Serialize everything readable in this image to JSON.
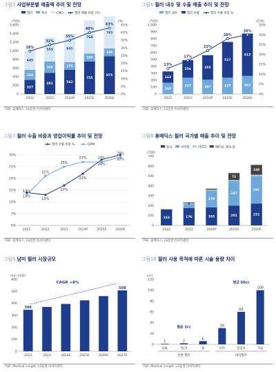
{
  "charts": [
    {
      "fig": "그림5",
      "title": "사업부문별 매출액 추이 및 전망",
      "source": "자료: 휴메딕스, LS증권 리서치센터",
      "chart_data": {
        "type": "bar+line",
        "categories": [
          "2022",
          "2023",
          "2024P",
          "2025E",
          "2026E"
        ],
        "left_unit": "(억원)",
        "right_unit": "(%)",
        "ylim": [
          0,
          1600
        ],
        "yticks": [
          "0",
          "200",
          "400",
          "600",
          "800",
          "1,000",
          "1,200",
          "1,400",
          "1,600"
        ],
        "y2lim": [
          0,
          45
        ],
        "y2ticks": [
          "0%",
          "5%",
          "10%",
          "15%",
          "20%",
          "25%",
          "30%",
          "35%",
          "40%",
          "45%"
        ],
        "legend": [
          "필러",
          "톡신",
          "CMO",
          "필러 매출 비중 (우)"
        ],
        "bars": [
          {
            "name": "필러",
            "color": "#1f3d8f",
            "values": [
              327,
              491,
              562,
              755,
              875
            ]
          },
          {
            "name": "톡신",
            "color": "#6fa8dc",
            "values": [
              234,
              264,
              175,
              184,
              180
            ]
          },
          {
            "name": "CMO",
            "color": "#d9e8f5",
            "values": [
              445,
              555,
              641,
              764,
              743
            ]
          }
        ],
        "line": {
          "name": "필러 매출 비중 (우)",
          "values": [
            28,
            32,
            35,
            40,
            43
          ],
          "labels": [
            "28%",
            "32%",
            "35%",
            "40%",
            "43%"
          ]
        }
      }
    },
    {
      "fig": "그림6",
      "title": "필러 내수 및 수출 매출 추이 및 전망",
      "source": "자료: 휴메딕스, LS증권 리서치센터",
      "chart_data": {
        "type": "bar+line",
        "categories": [
          "2022",
          "2023",
          "2024P",
          "2025E",
          "2026E"
        ],
        "left_unit": "(억원)",
        "right_unit": "(단위)",
        "ylim": [
          0,
          1000
        ],
        "yticks": [
          "0",
          "100",
          "200",
          "300",
          "400",
          "500",
          "600",
          "700",
          "800",
          "900",
          "1,000"
        ],
        "y2lim": [
          0,
          35
        ],
        "y2ticks": [
          "0%",
          "5%",
          "10%",
          "15%",
          "20%",
          "25%",
          "30%",
          "35%"
        ],
        "legend": [
          "필러 내수",
          "필러 수출",
          "필러 수출 비중 %"
        ],
        "bars": [
          {
            "name": "필러 내수",
            "color": "#6fa8dc",
            "values": [
              164,
              237,
              207,
              237,
              262
            ]
          },
          {
            "name": "필러 수출",
            "color": "#1f3d8f",
            "values": [
              163,
              254,
              355,
              517,
              613
            ]
          }
        ],
        "line": {
          "name": "필러 수출 비중 %",
          "values": [
            13,
            17,
            22,
            28,
            30
          ],
          "labels": [
            "13%",
            "17%",
            "22%",
            "28%",
            "30%"
          ]
        }
      }
    },
    {
      "fig": "그림7",
      "title": "필러 수출 비중과 영업이익률 추이 및 전망",
      "source": "자료: 휴메딕스, LS증권 리서치센터",
      "chart_data": {
        "type": "line",
        "categories": [
          "2021",
          "2022",
          "2023",
          "2024P",
          "2025E",
          "2026E"
        ],
        "ylim": [
          0,
          30
        ],
        "yticks": [
          "0%",
          "5%",
          "10%",
          "15%",
          "20%",
          "25%",
          "30%"
        ],
        "legend": [
          "필러 수출 비중 %",
          "OPM"
        ],
        "series": [
          {
            "name": "필러 수출 비중 %",
            "color": "#1f3d8f",
            "values": [
              14,
              13,
              17,
              22,
              28,
              30
            ],
            "labels": [
              "14%",
              "13%",
              "17%",
              "22%",
              "28%",
              "30%"
            ]
          },
          {
            "name": "OPM",
            "color": "#6fa8dc",
            "values": [
              13,
              21,
              25,
              27,
              27,
              29
            ],
            "labels": [
              "13%",
              "21%",
              "25%",
              "27%",
              "27%",
              "29%"
            ]
          }
        ]
      }
    },
    {
      "fig": "그림8",
      "title": "휴메딕스 필러 국가별 매출 추이 및 전망",
      "source": "자료: 휴메딕스, LS증권 리서치센터",
      "chart_data": {
        "type": "bar",
        "categories": [
          "2022",
          "2023",
          "2024P",
          "2025E",
          "2026E"
        ],
        "left_unit": "(억원)",
        "ylim": [
          0,
          700
        ],
        "yticks": [
          "0",
          "100",
          "200",
          "300",
          "400",
          "500",
          "600",
          "700"
        ],
        "legend": [
          "중국",
          "브라질",
          "이라크",
          "베트남, 태국 등"
        ],
        "series": [
          {
            "name": "중국",
            "color": "#1f3d8f",
            "values": [
              163,
              176,
              183,
              201,
              221
            ]
          },
          {
            "name": "브라질",
            "color": "#6fa8dc",
            "values": [
              0,
              40,
              170,
              247,
              281
            ]
          },
          {
            "name": "이라크",
            "color": "#b4cfe8",
            "values": [
              0,
              8,
              9,
              11,
              11
            ]
          },
          {
            "name": "베트남, 태국 등",
            "color": "#444444",
            "values": [
              0,
              8,
              10,
              71,
              100
            ]
          }
        ],
        "labels": [
          [
            "163",
            "",
            "",
            ""
          ],
          [
            "176",
            "",
            "8",
            ""
          ],
          [
            "183",
            "170",
            "",
            ""
          ],
          [
            "201",
            "247",
            "",
            "71"
          ],
          [
            "221",
            "281",
            "",
            "100"
          ]
        ]
      }
    },
    {
      "fig": "그림9",
      "title": "남미 필러 시장규모",
      "source": "자료: Medical insight, LS증권 리서치센터",
      "chart_data": {
        "type": "bar",
        "categories": [
          "2022",
          "2023",
          "2024E",
          "2025E",
          "2026E",
          "2027E"
        ],
        "left_unit": "(mn USD)",
        "ylim": [
          0,
          600
        ],
        "yticks": [
          "0",
          "100",
          "200",
          "300",
          "400",
          "500",
          "600"
        ],
        "values": [
          346,
          370,
          395,
          425,
          460,
          508
        ],
        "labels": [
          "346",
          "",
          "",
          "",
          "",
          "508"
        ],
        "annotation": "CAGR +8%",
        "color": "#1f3d8f"
      }
    },
    {
      "fig": "그림10",
      "title": "필러 사용 목적에 따른 시술 용량 차이",
      "source": "자료: Medical insight, LS증권 리서치센터",
      "chart_data": {
        "type": "bar",
        "categories": [
          "입술",
          "턱/코",
          "볼",
          "이마",
          "엉덩이",
          "가슴"
        ],
        "left_unit": "(cc)",
        "ylim": [
          0,
          120
        ],
        "yticks": [
          "0",
          "20",
          "40",
          "60",
          "80",
          "100",
          "120"
        ],
        "values": [
          1,
          2,
          6,
          30,
          60,
          100
        ],
        "labels": [
          "1",
          "2",
          "6",
          "30",
          "60",
          "100"
        ],
        "groups": [
          {
            "label": "안면 필러",
            "note": "평균 3cc"
          },
          {
            "label": "바디필러",
            "note": "평균 60cc"
          }
        ],
        "color": "#1f3d8f"
      }
    }
  ]
}
